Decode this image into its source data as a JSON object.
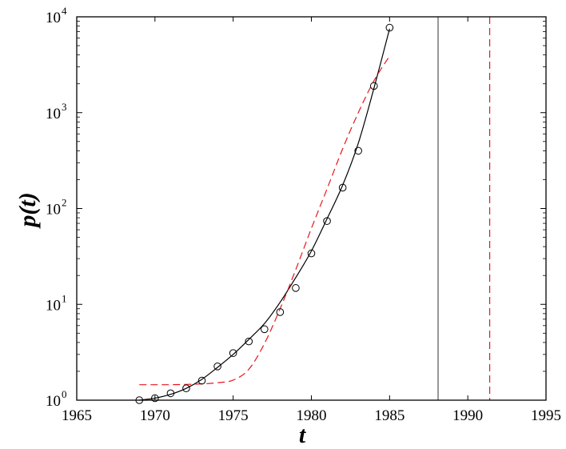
{
  "chart_data": {
    "type": "scatter",
    "xlabel": "t",
    "ylabel": "p(t)",
    "xlim": [
      1965,
      1995
    ],
    "ylim": [
      1,
      10000
    ],
    "yscale": "log",
    "grid": false,
    "xticks": [
      "1965",
      "1970",
      "1975",
      "1980",
      "1985",
      "1990",
      "1995"
    ],
    "yticks": [
      {
        "base": "10",
        "exp": "0"
      },
      {
        "base": "10",
        "exp": "1"
      },
      {
        "base": "10",
        "exp": "2"
      },
      {
        "base": "10",
        "exp": "3"
      },
      {
        "base": "10",
        "exp": "4"
      }
    ],
    "series": [
      {
        "kind": "markers",
        "marker": "open-circle",
        "color": "#000000",
        "x": [
          1969,
          1970,
          1971,
          1972,
          1973,
          1974,
          1975,
          1976,
          1977,
          1978,
          1979,
          1980,
          1981,
          1982,
          1983,
          1984,
          1985
        ],
        "y": [
          1.0,
          1.05,
          1.18,
          1.33,
          1.6,
          2.25,
          3.1,
          4.1,
          5.5,
          8.3,
          14.8,
          34,
          74,
          165,
          400,
          1900,
          7700
        ]
      },
      {
        "kind": "line",
        "style": "solid",
        "color": "#000000",
        "x": [
          1969,
          1970,
          1971,
          1972,
          1973,
          1974,
          1975,
          1976,
          1977,
          1978,
          1979,
          1980,
          1981,
          1982,
          1983,
          1984,
          1985
        ],
        "y": [
          1.0,
          1.05,
          1.15,
          1.33,
          1.65,
          2.2,
          3.0,
          4.3,
          6.3,
          10.5,
          19,
          36,
          78,
          175,
          480,
          1800,
          7500
        ]
      },
      {
        "kind": "line",
        "style": "dashed",
        "color": "#e8151b",
        "x": [
          1969,
          1970,
          1971,
          1972,
          1973,
          1974,
          1975,
          1976,
          1977,
          1978,
          1979,
          1980,
          1981,
          1982,
          1983,
          1984,
          1985
        ],
        "y": [
          1.45,
          1.45,
          1.45,
          1.46,
          1.48,
          1.52,
          1.62,
          2.1,
          3.9,
          9.0,
          23,
          62,
          160,
          420,
          1000,
          2150,
          3900
        ]
      }
    ],
    "vlines": [
      {
        "x": 1988.1,
        "style": "solid",
        "color": "#555555"
      },
      {
        "x": 1991.4,
        "style": "dashed",
        "color": "#e8151b"
      }
    ]
  }
}
